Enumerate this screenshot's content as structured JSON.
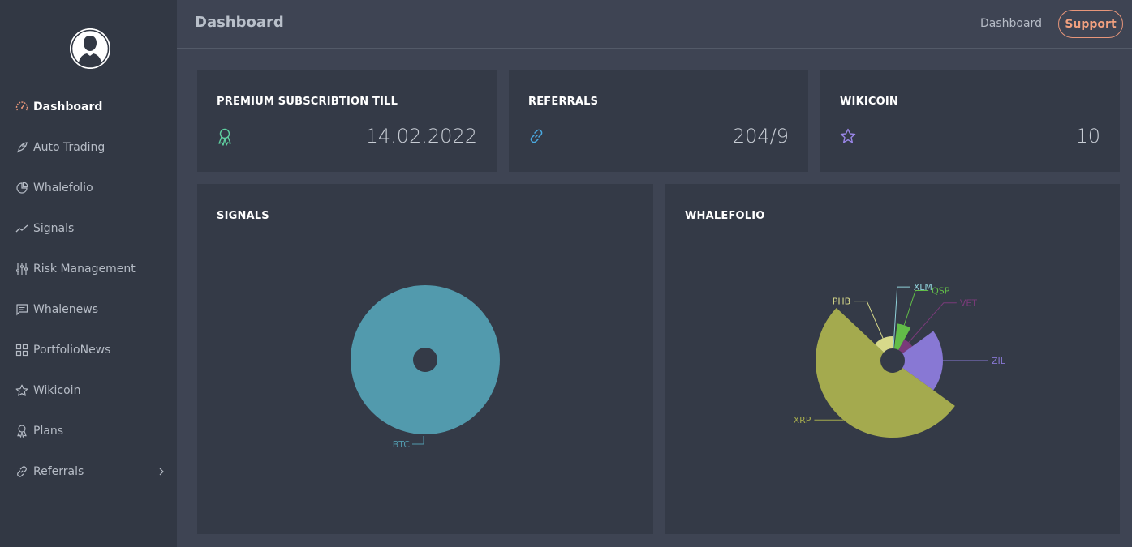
{
  "header": {
    "title": "Dashboard",
    "link": "Dashboard",
    "support_label": "Support"
  },
  "sidebar": {
    "items": [
      {
        "label": "Dashboard",
        "icon": "speedometer-icon",
        "active": true
      },
      {
        "label": "Auto Trading",
        "icon": "rocket-icon"
      },
      {
        "label": "Whalefolio",
        "icon": "pie-icon"
      },
      {
        "label": "Signals",
        "icon": "trend-icon"
      },
      {
        "label": "Risk Management",
        "icon": "sliders-icon"
      },
      {
        "label": "Whalenews",
        "icon": "chat-icon"
      },
      {
        "label": "PortfolioNews",
        "icon": "grid-icon"
      },
      {
        "label": "Wikicoin",
        "icon": "star-icon"
      },
      {
        "label": "Plans",
        "icon": "award-icon"
      },
      {
        "label": "Referrals",
        "icon": "link-icon",
        "has_submenu": true
      }
    ]
  },
  "stats": {
    "premium": {
      "title": "PREMIUM SUBSCRIBTION TILL",
      "value": "14.02.2022",
      "icon": "award-icon",
      "color": "#5fcfa0"
    },
    "referrals": {
      "title": "REFERRALS",
      "value": "204/9",
      "icon": "link-icon",
      "color": "#4aa9e0"
    },
    "wikicoin": {
      "title": "WIKICOIN",
      "value": "10",
      "icon": "star-icon",
      "color": "#9a86e8"
    }
  },
  "signals": {
    "title": "SIGNALS"
  },
  "whalefolio": {
    "title": "WHALEFOLIO"
  },
  "chart_data": [
    {
      "type": "pie",
      "title": "SIGNALS",
      "categories": [
        "BTC"
      ],
      "values": [
        1
      ],
      "colors": [
        "#529aad"
      ]
    },
    {
      "type": "pie",
      "subtype": "polar-area",
      "title": "WHALEFOLIO",
      "categories": [
        "XLM",
        "QSP",
        "VET",
        "ZIL",
        "XRP",
        "PHB"
      ],
      "values": [
        0.02,
        0.06,
        0.07,
        0.2,
        0.52,
        0.13
      ],
      "radii": [
        16,
        46,
        30,
        62,
        95,
        30
      ],
      "colors": [
        "#8fd0d8",
        "#62bd48",
        "#7a3a7a",
        "#8878d4",
        "#a4aa4e",
        "#d7d98a"
      ],
      "label_colors": [
        "#8fd0d8",
        "#62bd48",
        "#7a3a7a",
        "#8878d4",
        "#a4aa4e",
        "#d7d98a"
      ]
    }
  ]
}
